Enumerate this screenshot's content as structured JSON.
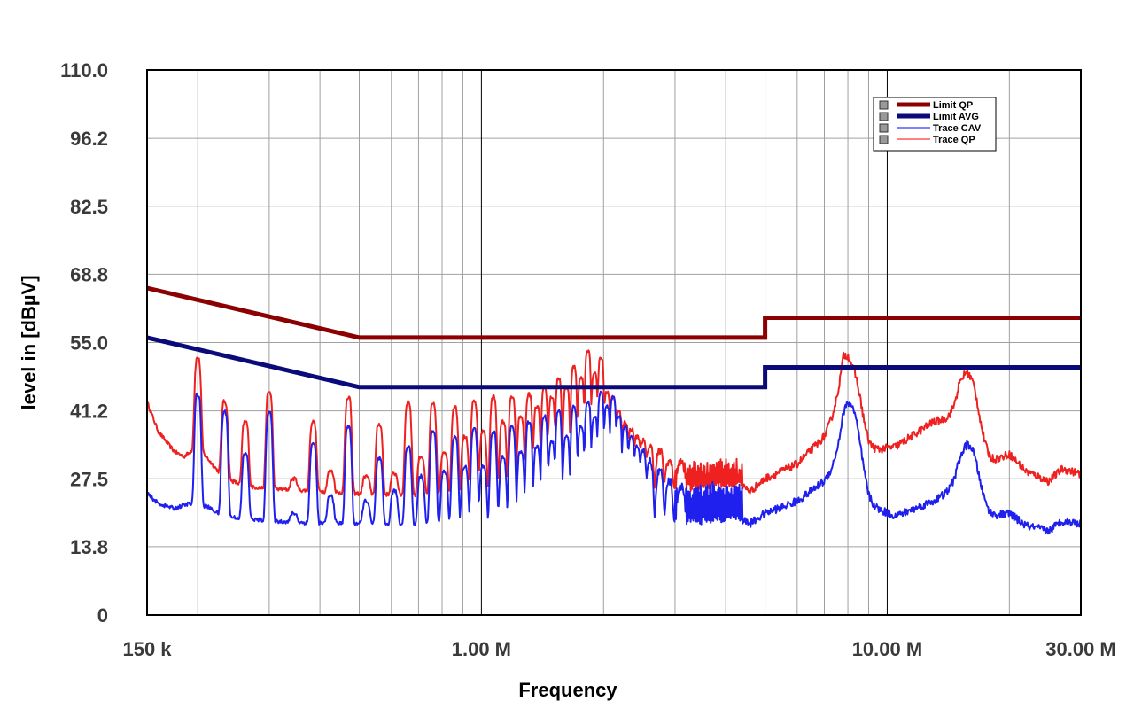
{
  "chart_data": {
    "type": "line",
    "title": "",
    "xlabel": "Frequency",
    "ylabel": "level in [dBµV]",
    "x_scale": "log",
    "xlim_hz": [
      150000,
      30000000
    ],
    "ylim": [
      0,
      110
    ],
    "grid": true,
    "legend_position": "top-right",
    "y_ticks": [
      {
        "value": 0,
        "label": "0"
      },
      {
        "value": 13.8,
        "label": "13.8"
      },
      {
        "value": 27.5,
        "label": "27.5"
      },
      {
        "value": 41.2,
        "label": "41.2"
      },
      {
        "value": 55.0,
        "label": "55.0"
      },
      {
        "value": 68.8,
        "label": "68.8"
      },
      {
        "value": 82.5,
        "label": "82.5"
      },
      {
        "value": 96.2,
        "label": "96.2"
      },
      {
        "value": 110,
        "label": "110.0"
      }
    ],
    "x_ticks": [
      {
        "value": 150000,
        "label": "150 k"
      },
      {
        "value": 1000000,
        "label": "1.00 M"
      },
      {
        "value": 10000000,
        "label": "10.00 M"
      },
      {
        "value": 30000000,
        "label": "30.00 M"
      }
    ],
    "series": [
      {
        "name": "Limit QP",
        "color": "#8b0000",
        "kind": "limit",
        "points": [
          [
            150000,
            66
          ],
          [
            500000,
            56
          ],
          [
            5000000,
            56
          ],
          [
            5000000,
            60
          ],
          [
            30000000,
            60
          ]
        ]
      },
      {
        "name": "Limit AVG",
        "color": "#0a0a7a",
        "kind": "limit",
        "points": [
          [
            150000,
            56
          ],
          [
            500000,
            46
          ],
          [
            5000000,
            46
          ],
          [
            5000000,
            50
          ],
          [
            30000000,
            50
          ]
        ]
      },
      {
        "name": "Trace CAV",
        "color": "#2020ee",
        "legend_color": "#7f7fff",
        "kind": "trace",
        "baseline": [
          [
            150000,
            24.5
          ],
          [
            160000,
            22.5
          ],
          [
            175000,
            21.5
          ],
          [
            190000,
            22.5
          ],
          [
            200000,
            22
          ],
          [
            210000,
            22
          ],
          [
            230000,
            20
          ],
          [
            260000,
            19.5
          ],
          [
            300000,
            19
          ],
          [
            400000,
            18.5
          ],
          [
            500000,
            18.5
          ],
          [
            700000,
            18.2
          ],
          [
            1000000,
            18
          ],
          [
            1500000,
            18
          ],
          [
            2000000,
            18.3
          ],
          [
            3000000,
            18.8
          ],
          [
            4300000,
            19.5
          ],
          [
            4600000,
            18.5
          ],
          [
            5000000,
            20.5
          ],
          [
            6000000,
            23
          ],
          [
            7000000,
            27
          ],
          [
            7800000,
            32
          ],
          [
            8200000,
            27
          ],
          [
            9000000,
            22
          ],
          [
            10500000,
            20
          ],
          [
            13000000,
            23
          ],
          [
            15000000,
            26
          ],
          [
            16000000,
            22
          ],
          [
            18000000,
            20
          ],
          [
            20000000,
            20.5
          ],
          [
            22000000,
            18
          ],
          [
            25000000,
            17
          ],
          [
            27000000,
            19
          ],
          [
            30000000,
            18.5
          ]
        ],
        "peaks": [
          [
            200000,
            44.5
          ],
          [
            233000,
            41
          ],
          [
            262000,
            32.5
          ],
          [
            300000,
            41
          ],
          [
            345000,
            20.5
          ],
          [
            385000,
            34.5
          ],
          [
            425000,
            24
          ],
          [
            470000,
            38
          ],
          [
            520000,
            23
          ],
          [
            560000,
            31.5
          ],
          [
            610000,
            25
          ],
          [
            660000,
            34
          ],
          [
            710000,
            28
          ],
          [
            760000,
            37
          ],
          [
            810000,
            29
          ],
          [
            860000,
            36
          ],
          [
            910000,
            30
          ],
          [
            960000,
            37.5
          ],
          [
            1010000,
            30
          ],
          [
            1070000,
            37
          ],
          [
            1130000,
            32
          ],
          [
            1190000,
            38
          ],
          [
            1250000,
            33
          ],
          [
            1310000,
            39
          ],
          [
            1370000,
            34
          ],
          [
            1430000,
            40
          ],
          [
            1490000,
            35
          ],
          [
            1550000,
            41
          ],
          [
            1620000,
            36
          ],
          [
            1690000,
            42
          ],
          [
            1760000,
            38
          ],
          [
            1830000,
            43
          ],
          [
            1900000,
            40
          ],
          [
            1970000,
            45
          ],
          [
            2040000,
            42
          ],
          [
            2110000,
            44
          ],
          [
            2180000,
            40
          ],
          [
            2260000,
            38
          ],
          [
            2340000,
            36
          ],
          [
            2420000,
            34
          ],
          [
            2500000,
            33
          ],
          [
            2600000,
            31
          ],
          [
            2750000,
            29
          ],
          [
            2900000,
            27
          ],
          [
            3100000,
            26
          ]
        ],
        "upper_envelope": [
          [
            3000000,
            26
          ],
          [
            4400000,
            26.5
          ]
        ],
        "hump_peaks": [
          [
            8200000,
            42
          ],
          [
            16000000,
            34
          ]
        ]
      },
      {
        "name": "Trace QP",
        "color": "#ee2020",
        "legend_color": "#ff8080",
        "kind": "trace",
        "baseline": [
          [
            150000,
            43
          ],
          [
            160000,
            37
          ],
          [
            175000,
            33
          ],
          [
            185000,
            32
          ],
          [
            200000,
            34
          ],
          [
            230000,
            28
          ],
          [
            260000,
            26
          ],
          [
            300000,
            25.5
          ],
          [
            400000,
            25
          ],
          [
            500000,
            24.5
          ],
          [
            700000,
            24.2
          ],
          [
            1000000,
            24
          ],
          [
            1500000,
            24
          ],
          [
            2000000,
            24.5
          ],
          [
            3000000,
            25.5
          ],
          [
            4300000,
            26.5
          ],
          [
            4600000,
            25
          ],
          [
            5000000,
            27.5
          ],
          [
            6000000,
            30.5
          ],
          [
            7000000,
            36
          ],
          [
            7800000,
            44
          ],
          [
            8200000,
            36
          ],
          [
            9000000,
            33
          ],
          [
            10500000,
            34
          ],
          [
            13000000,
            39
          ],
          [
            15000000,
            40
          ],
          [
            16000000,
            33
          ],
          [
            18000000,
            31
          ],
          [
            20000000,
            32.5
          ],
          [
            22000000,
            29
          ],
          [
            25000000,
            27
          ],
          [
            27000000,
            29.5
          ],
          [
            30000000,
            28.5
          ]
        ],
        "peaks": [
          [
            200000,
            52
          ],
          [
            233000,
            43
          ],
          [
            262000,
            39
          ],
          [
            300000,
            45
          ],
          [
            345000,
            27.5
          ],
          [
            385000,
            39
          ],
          [
            425000,
            29
          ],
          [
            470000,
            44
          ],
          [
            520000,
            28
          ],
          [
            560000,
            38.5
          ],
          [
            610000,
            28.5
          ],
          [
            660000,
            43
          ],
          [
            710000,
            32
          ],
          [
            760000,
            42.5
          ],
          [
            810000,
            33
          ],
          [
            860000,
            42
          ],
          [
            910000,
            36
          ],
          [
            960000,
            43
          ],
          [
            1010000,
            37
          ],
          [
            1070000,
            44
          ],
          [
            1130000,
            39
          ],
          [
            1190000,
            44
          ],
          [
            1250000,
            40
          ],
          [
            1310000,
            44.5
          ],
          [
            1370000,
            42
          ],
          [
            1430000,
            45.5
          ],
          [
            1490000,
            44
          ],
          [
            1550000,
            47.5
          ],
          [
            1620000,
            46
          ],
          [
            1690000,
            50
          ],
          [
            1760000,
            48
          ],
          [
            1830000,
            53.5
          ],
          [
            1900000,
            49
          ],
          [
            1970000,
            52
          ],
          [
            2040000,
            45
          ],
          [
            2110000,
            44
          ],
          [
            2180000,
            41
          ],
          [
            2260000,
            39
          ],
          [
            2340000,
            37.5
          ],
          [
            2420000,
            36
          ],
          [
            2500000,
            35
          ],
          [
            2600000,
            34
          ],
          [
            2750000,
            33
          ],
          [
            2900000,
            31
          ],
          [
            3100000,
            31
          ]
        ],
        "upper_envelope": [
          [
            3000000,
            31
          ],
          [
            4400000,
            31
          ]
        ],
        "hump_peaks": [
          [
            8200000,
            50
          ],
          [
            16000000,
            48
          ]
        ]
      }
    ]
  }
}
